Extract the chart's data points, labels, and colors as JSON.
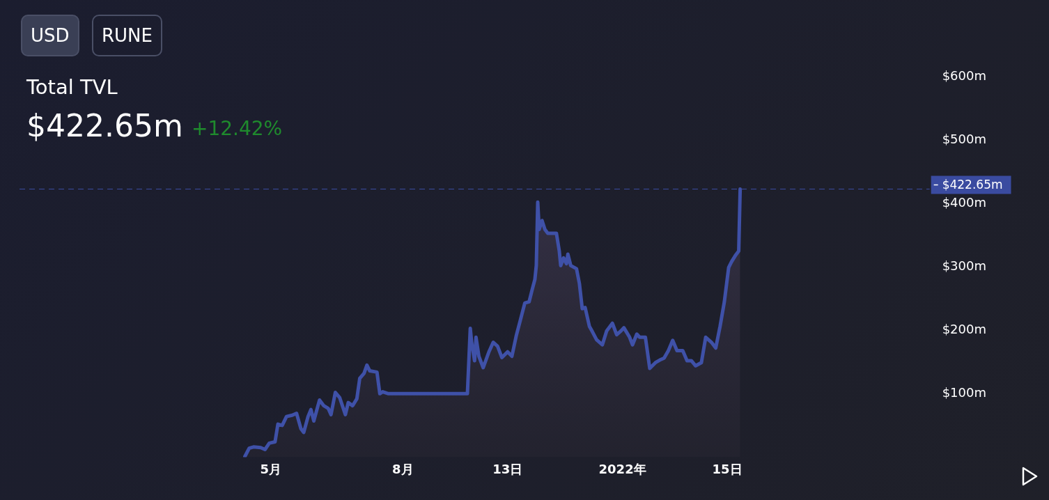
{
  "chart_data": {
    "type": "area",
    "title": "Total TVL",
    "subtitle": "$422.65m",
    "annotations": [
      "USD",
      "RUNE",
      "+12.42%"
    ],
    "x": [
      "2021-04-13",
      "2021-04-16",
      "2021-04-19",
      "2021-04-24",
      "2021-04-27",
      "2021-04-30",
      "2021-05-04",
      "2021-05-06",
      "2021-05-09",
      "2021-05-12",
      "2021-05-16",
      "2021-05-19",
      "2021-05-22",
      "2021-05-24",
      "2021-05-27",
      "2021-05-29",
      "2021-05-31",
      "2021-06-04",
      "2021-06-07",
      "2021-06-10",
      "2021-06-12",
      "2021-06-15",
      "2021-06-18",
      "2021-06-22",
      "2021-06-24",
      "2021-06-27",
      "2021-06-30",
      "2021-07-02",
      "2021-07-05",
      "2021-07-07",
      "2021-07-09",
      "2021-07-14",
      "2021-07-16",
      "2021-07-18",
      "2021-07-22",
      "2021-09-15",
      "2021-09-17",
      "2021-09-18",
      "2021-09-20",
      "2021-09-21",
      "2021-09-23",
      "2021-09-26",
      "2021-09-30",
      "2021-10-03",
      "2021-10-06",
      "2021-10-09",
      "2021-10-13",
      "2021-10-16",
      "2021-10-19",
      "2021-10-22",
      "2021-10-25",
      "2021-10-28",
      "2021-10-30",
      "2021-11-01",
      "2021-11-02",
      "2021-11-03",
      "2021-11-04",
      "2021-11-06",
      "2021-11-08",
      "2021-11-10",
      "2021-11-16",
      "2021-11-18",
      "2021-11-19",
      "2021-11-21",
      "2021-11-23",
      "2021-11-24",
      "2021-11-26",
      "2021-11-30",
      "2021-12-02",
      "2021-12-04",
      "2021-12-06",
      "2021-12-09",
      "2021-12-11",
      "2021-12-14",
      "2021-12-18",
      "2021-12-21",
      "2021-12-25",
      "2021-12-28",
      "2021-12-31",
      "2022-01-02",
      "2022-01-06",
      "2022-01-08",
      "2022-01-11",
      "2022-01-13",
      "2022-01-17",
      "2022-01-20",
      "2022-01-24",
      "2022-01-27",
      "2022-01-30",
      "2022-02-02",
      "2022-02-05",
      "2022-02-08",
      "2022-02-12",
      "2022-02-15",
      "2022-02-18",
      "2022-02-21",
      "2022-02-25",
      "2022-02-28",
      "2022-03-04",
      "2022-03-07",
      "2022-03-10",
      "2022-03-13",
      "2022-03-16",
      "2022-03-18",
      "2022-03-21",
      "2022-03-23",
      "2022-03-24"
    ],
    "series": [
      {
        "color": "#3f51a8",
        "values": [
          1,
          14,
          16,
          15,
          12,
          22,
          24,
          52,
          50,
          64,
          66,
          69,
          45,
          39,
          64,
          75,
          57,
          90,
          81,
          77,
          67,
          102,
          94,
          67,
          86,
          81,
          92,
          124,
          132,
          145,
          136,
          134,
          100,
          103,
          100,
          100,
          203,
          180,
          152,
          189,
          159,
          141,
          166,
          181,
          175,
          157,
          166,
          159,
          191,
          217,
          243,
          245,
          263,
          280,
          302,
          402,
          359,
          373,
          359,
          353,
          353,
          325,
          302,
          314,
          305,
          320,
          302,
          297,
          274,
          234,
          236,
          206,
          198,
          185,
          177,
          199,
          211,
          193,
          199,
          204,
          189,
          177,
          194,
          189,
          189,
          140,
          149,
          153,
          156,
          168,
          184,
          168,
          168,
          152,
          152,
          144,
          149,
          189,
          181,
          172,
          206,
          245,
          299,
          308,
          319,
          325,
          422.65
        ]
      }
    ],
    "xlim": [
      "2020-11-07",
      "2022-08-03"
    ],
    "xticks": [
      {
        "value": "2021-05-01",
        "label": "5月"
      },
      {
        "value": "2021-08-01",
        "label": "8月"
      },
      {
        "value": "2021-10-13",
        "label": "13日"
      },
      {
        "value": "2022-01-01",
        "label": "2022年"
      },
      {
        "value": "2022-03-15",
        "label": "15日"
      }
    ],
    "ylim": [
      0,
      600
    ],
    "yticks": [
      {
        "value": 100,
        "label": "$100m"
      },
      {
        "value": 200,
        "label": "$200m"
      },
      {
        "value": 300,
        "label": "$300m"
      },
      {
        "value": 400,
        "label": "$400m"
      },
      {
        "value": 500,
        "label": "$500m"
      },
      {
        "value": 600,
        "label": "$600m"
      }
    ],
    "ref_lines": [
      {
        "axis": "y",
        "value": 422.65,
        "label": "$422.65m",
        "color": "#3a4ba0",
        "line_style": "dashed"
      }
    ],
    "grid": false,
    "legend": false,
    "marker": "none",
    "line_style": "solid"
  }
}
